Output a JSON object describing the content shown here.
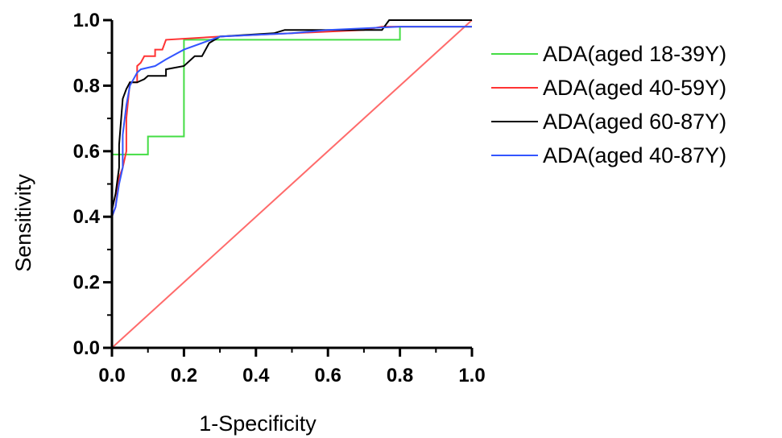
{
  "chart_data": {
    "type": "line",
    "title": "",
    "xlabel": "1-Specificity",
    "ylabel": "Sensitivity",
    "xlim": [
      0,
      1
    ],
    "ylim": [
      0,
      1
    ],
    "x_ticks": [
      "0.0",
      "0.2",
      "0.4",
      "0.6",
      "0.8",
      "1.0"
    ],
    "y_ticks": [
      "0.0",
      "0.2",
      "0.4",
      "0.6",
      "0.8",
      "1.0"
    ],
    "grid": false,
    "legend_position": "right",
    "reference_line": {
      "color": "#ff6b6b",
      "points": [
        [
          0,
          0
        ],
        [
          1,
          1
        ]
      ]
    },
    "series": [
      {
        "name": "ADA(aged 18-39Y)",
        "color": "#44dd44",
        "points": [
          [
            0,
            0.45
          ],
          [
            0,
            0.59
          ],
          [
            0.04,
            0.59
          ],
          [
            0.1,
            0.59
          ],
          [
            0.1,
            0.645
          ],
          [
            0.2,
            0.645
          ],
          [
            0.2,
            0.94
          ],
          [
            0.3,
            0.94
          ],
          [
            0.8,
            0.94
          ],
          [
            0.8,
            0.98
          ],
          [
            1,
            0.98
          ]
        ]
      },
      {
        "name": "ADA(aged 40-59Y)",
        "color": "#ff3333",
        "points": [
          [
            0,
            0.4
          ],
          [
            0.01,
            0.43
          ],
          [
            0.02,
            0.52
          ],
          [
            0.03,
            0.55
          ],
          [
            0.04,
            0.6
          ],
          [
            0.04,
            0.7
          ],
          [
            0.05,
            0.81
          ],
          [
            0.07,
            0.81
          ],
          [
            0.07,
            0.86
          ],
          [
            0.08,
            0.87
          ],
          [
            0.09,
            0.89
          ],
          [
            0.12,
            0.89
          ],
          [
            0.12,
            0.91
          ],
          [
            0.14,
            0.91
          ],
          [
            0.15,
            0.94
          ],
          [
            0.3,
            0.95
          ],
          [
            0.5,
            0.96
          ],
          [
            0.7,
            0.97
          ],
          [
            0.75,
            0.98
          ],
          [
            1,
            0.98
          ]
        ]
      },
      {
        "name": "ADA(aged 60-87Y)",
        "color": "#000000",
        "points": [
          [
            0,
            0.42
          ],
          [
            0.01,
            0.47
          ],
          [
            0.02,
            0.55
          ],
          [
            0.02,
            0.62
          ],
          [
            0.03,
            0.76
          ],
          [
            0.04,
            0.79
          ],
          [
            0.05,
            0.81
          ],
          [
            0.07,
            0.81
          ],
          [
            0.09,
            0.82
          ],
          [
            0.1,
            0.83
          ],
          [
            0.15,
            0.83
          ],
          [
            0.15,
            0.85
          ],
          [
            0.2,
            0.86
          ],
          [
            0.23,
            0.89
          ],
          [
            0.25,
            0.89
          ],
          [
            0.27,
            0.93
          ],
          [
            0.3,
            0.95
          ],
          [
            0.45,
            0.96
          ],
          [
            0.48,
            0.97
          ],
          [
            0.75,
            0.97
          ],
          [
            0.77,
            1.0
          ],
          [
            1,
            1.0
          ]
        ]
      },
      {
        "name": "ADA(aged 40-87Y)",
        "color": "#3355ff",
        "points": [
          [
            0,
            0.4
          ],
          [
            0.01,
            0.43
          ],
          [
            0.02,
            0.5
          ],
          [
            0.03,
            0.55
          ],
          [
            0.03,
            0.65
          ],
          [
            0.04,
            0.74
          ],
          [
            0.05,
            0.8
          ],
          [
            0.06,
            0.82
          ],
          [
            0.07,
            0.84
          ],
          [
            0.08,
            0.85
          ],
          [
            0.12,
            0.86
          ],
          [
            0.15,
            0.88
          ],
          [
            0.2,
            0.91
          ],
          [
            0.25,
            0.93
          ],
          [
            0.3,
            0.95
          ],
          [
            0.5,
            0.96
          ],
          [
            0.6,
            0.97
          ],
          [
            0.8,
            0.98
          ],
          [
            1,
            0.98
          ]
        ]
      }
    ]
  }
}
